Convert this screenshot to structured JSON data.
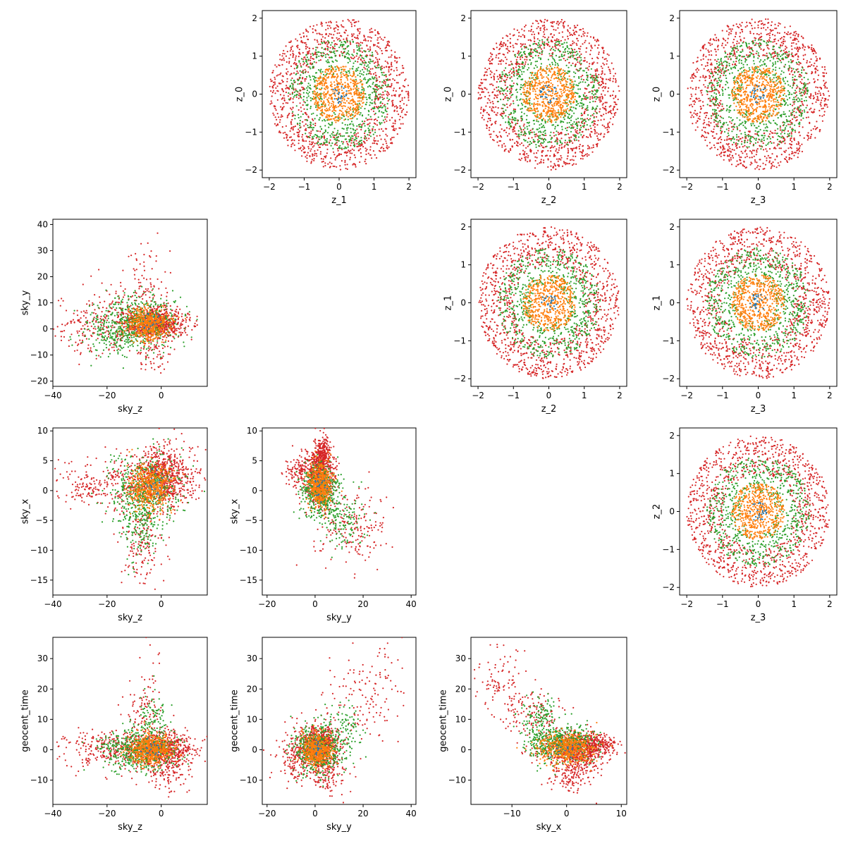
{
  "figure": {
    "colors": {
      "blue": "#1f77b4",
      "orange": "#ff7f0e",
      "green": "#2ca02c",
      "red": "#d62728",
      "frame": "#000000",
      "background": "#ffffff"
    }
  },
  "chart_data": [
    {
      "type": "scatter",
      "id": "z1-z0",
      "xlabel": "z_1",
      "ylabel": "z_0",
      "xlim": [
        -2.2,
        2.2
      ],
      "ylim": [
        -2.2,
        2.2
      ],
      "xticks": [
        -2,
        -1,
        0,
        1,
        2
      ],
      "yticks": [
        -2,
        -1,
        0,
        1,
        2
      ],
      "grid": false,
      "series": [
        {
          "color": "#d62728",
          "shape": "ring",
          "rmin": 1.0,
          "rmax": 2.0,
          "count": 1150
        },
        {
          "color": "#2ca02c",
          "shape": "ring",
          "rmin": 0.5,
          "rmax": 1.45,
          "count": 700
        },
        {
          "color": "#ff7f0e",
          "shape": "disc",
          "rmax": 0.75,
          "count": 550
        },
        {
          "color": "#1f77b4",
          "shape": "disc",
          "rmax": 0.25,
          "count": 25
        }
      ]
    },
    {
      "type": "scatter",
      "id": "z2-z0",
      "xlabel": "z_2",
      "ylabel": "z_0",
      "xlim": [
        -2.2,
        2.2
      ],
      "ylim": [
        -2.2,
        2.2
      ],
      "xticks": [
        -2,
        -1,
        0,
        1,
        2
      ],
      "yticks": [
        -2,
        -1,
        0,
        1,
        2
      ],
      "grid": false,
      "series": [
        {
          "color": "#d62728",
          "shape": "ring",
          "rmin": 1.0,
          "rmax": 2.0,
          "count": 1150
        },
        {
          "color": "#2ca02c",
          "shape": "ring",
          "rmin": 0.5,
          "rmax": 1.45,
          "count": 700
        },
        {
          "color": "#ff7f0e",
          "shape": "disc",
          "rmax": 0.75,
          "count": 550
        },
        {
          "color": "#1f77b4",
          "shape": "disc",
          "rmax": 0.25,
          "count": 25
        }
      ]
    },
    {
      "type": "scatter",
      "id": "z3-z0",
      "xlabel": "z_3",
      "ylabel": "z_0",
      "xlim": [
        -2.2,
        2.2
      ],
      "ylim": [
        -2.2,
        2.2
      ],
      "xticks": [
        -2,
        -1,
        0,
        1,
        2
      ],
      "yticks": [
        -2,
        -1,
        0,
        1,
        2
      ],
      "grid": false,
      "series": [
        {
          "color": "#d62728",
          "shape": "ring",
          "rmin": 1.0,
          "rmax": 2.0,
          "count": 1150
        },
        {
          "color": "#2ca02c",
          "shape": "ring",
          "rmin": 0.5,
          "rmax": 1.45,
          "count": 700
        },
        {
          "color": "#ff7f0e",
          "shape": "disc",
          "rmax": 0.75,
          "count": 550
        },
        {
          "color": "#1f77b4",
          "shape": "disc",
          "rmax": 0.25,
          "count": 25
        }
      ]
    },
    {
      "type": "scatter",
      "id": "skyz-skyy",
      "xlabel": "sky_z",
      "ylabel": "sky_y",
      "xlim": [
        -40,
        17
      ],
      "ylim": [
        -22,
        42
      ],
      "xticks": [
        -40,
        -20,
        0
      ],
      "yticks": [
        -20,
        -10,
        0,
        10,
        20,
        30,
        40
      ],
      "grid": false,
      "series": [
        {
          "color": "#d62728",
          "shape": "blobs",
          "count": 1200,
          "blobs": [
            {
              "cx": -2,
              "cy": 2,
              "sx": 6,
              "sy": 3,
              "w": 0.62
            },
            {
              "cx": -20,
              "cy": 2,
              "sx": 9,
              "sy": 6,
              "w": 0.22
            },
            {
              "cx": -6,
              "cy": 14,
              "sx": 4,
              "sy": 9,
              "w": 0.1
            },
            {
              "cx": -3,
              "cy": -8,
              "sx": 3,
              "sy": 5,
              "w": 0.06
            }
          ]
        },
        {
          "color": "#2ca02c",
          "shape": "blobs",
          "count": 600,
          "blobs": [
            {
              "cx": -8,
              "cy": 3,
              "sx": 8,
              "sy": 5,
              "w": 0.8
            },
            {
              "cx": -18,
              "cy": -3,
              "sx": 6,
              "sy": 4,
              "w": 0.2
            }
          ]
        },
        {
          "color": "#ff7f0e",
          "shape": "blobs",
          "count": 500,
          "blobs": [
            {
              "cx": -5,
              "cy": 2,
              "sx": 4,
              "sy": 3,
              "w": 1.0
            }
          ]
        },
        {
          "color": "#1f77b4",
          "shape": "blobs",
          "count": 20,
          "blobs": [
            {
              "cx": -4,
              "cy": 2,
              "sx": 2,
              "sy": 1.5,
              "w": 1.0
            }
          ]
        }
      ]
    },
    {
      "type": "scatter",
      "id": "z2-z1",
      "xlabel": "z_2",
      "ylabel": "z_1",
      "xlim": [
        -2.2,
        2.2
      ],
      "ylim": [
        -2.2,
        2.2
      ],
      "xticks": [
        -2,
        -1,
        0,
        1,
        2
      ],
      "yticks": [
        -2,
        -1,
        0,
        1,
        2
      ],
      "grid": false,
      "series": [
        {
          "color": "#d62728",
          "shape": "ring",
          "rmin": 1.0,
          "rmax": 2.0,
          "count": 1150
        },
        {
          "color": "#2ca02c",
          "shape": "ring",
          "rmin": 0.5,
          "rmax": 1.45,
          "count": 700
        },
        {
          "color": "#ff7f0e",
          "shape": "disc",
          "rmax": 0.75,
          "count": 550
        },
        {
          "color": "#1f77b4",
          "shape": "disc",
          "rmax": 0.25,
          "count": 25
        }
      ]
    },
    {
      "type": "scatter",
      "id": "z3-z1",
      "xlabel": "z_3",
      "ylabel": "z_1",
      "xlim": [
        -2.2,
        2.2
      ],
      "ylim": [
        -2.2,
        2.2
      ],
      "xticks": [
        -2,
        -1,
        0,
        1,
        2
      ],
      "yticks": [
        -2,
        -1,
        0,
        1,
        2
      ],
      "grid": false,
      "series": [
        {
          "color": "#d62728",
          "shape": "ring",
          "rmin": 1.0,
          "rmax": 2.0,
          "count": 1150
        },
        {
          "color": "#2ca02c",
          "shape": "ring",
          "rmin": 0.5,
          "rmax": 1.45,
          "count": 700
        },
        {
          "color": "#ff7f0e",
          "shape": "disc",
          "rmax": 0.75,
          "count": 550
        },
        {
          "color": "#1f77b4",
          "shape": "disc",
          "rmax": 0.25,
          "count": 25
        }
      ]
    },
    {
      "type": "scatter",
      "id": "skyz-skyx",
      "xlabel": "sky_z",
      "ylabel": "sky_x",
      "xlim": [
        -40,
        17
      ],
      "ylim": [
        -17.5,
        10.5
      ],
      "xticks": [
        -40,
        -20,
        0
      ],
      "yticks": [
        -15,
        -10,
        -5,
        0,
        5,
        10
      ],
      "grid": false,
      "series": [
        {
          "color": "#d62728",
          "shape": "blobs",
          "count": 1200,
          "blobs": [
            {
              "cx": 0,
              "cy": 2.5,
              "sx": 6,
              "sy": 2.5,
              "w": 0.65
            },
            {
              "cx": -22,
              "cy": 1,
              "sx": 9,
              "sy": 2,
              "w": 0.2
            },
            {
              "cx": -6,
              "cy": -8,
              "sx": 4,
              "sy": 4,
              "w": 0.15
            }
          ]
        },
        {
          "color": "#2ca02c",
          "shape": "blobs",
          "count": 600,
          "blobs": [
            {
              "cx": -6,
              "cy": 0,
              "sx": 7,
              "sy": 3,
              "w": 0.75
            },
            {
              "cx": -8,
              "cy": -6,
              "sx": 3,
              "sy": 3,
              "w": 0.25
            }
          ]
        },
        {
          "color": "#ff7f0e",
          "shape": "blobs",
          "count": 500,
          "blobs": [
            {
              "cx": -4,
              "cy": 0.5,
              "sx": 4,
              "sy": 2,
              "w": 1.0
            }
          ]
        },
        {
          "color": "#1f77b4",
          "shape": "blobs",
          "count": 20,
          "blobs": [
            {
              "cx": -3,
              "cy": 1,
              "sx": 2,
              "sy": 1,
              "w": 1.0
            }
          ]
        }
      ]
    },
    {
      "type": "scatter",
      "id": "skyy-skyx",
      "xlabel": "sky_y",
      "ylabel": "sky_x",
      "xlim": [
        -22,
        42
      ],
      "ylim": [
        -17.5,
        10.5
      ],
      "xticks": [
        -20,
        0,
        20,
        40
      ],
      "yticks": [
        -15,
        -10,
        -5,
        0,
        5,
        10
      ],
      "grid": false,
      "series": [
        {
          "color": "#d62728",
          "shape": "blobs",
          "count": 1200,
          "blobs": [
            {
              "cx": 2,
              "cy": 2.5,
              "sx": 3,
              "sy": 2.5,
              "w": 0.6
            },
            {
              "cx": 3,
              "cy": 6,
              "sx": 1.5,
              "sy": 1.5,
              "w": 0.15
            },
            {
              "cx": 15,
              "cy": -6,
              "sx": 8,
              "sy": 3.5,
              "w": 0.15
            },
            {
              "cx": -6,
              "cy": 3,
              "sx": 3,
              "sy": 1.5,
              "w": 0.1
            }
          ]
        },
        {
          "color": "#2ca02c",
          "shape": "blobs",
          "count": 600,
          "blobs": [
            {
              "cx": 2,
              "cy": 0,
              "sx": 4,
              "sy": 2.5,
              "w": 0.8
            },
            {
              "cx": 12,
              "cy": -5,
              "sx": 5,
              "sy": 2.5,
              "w": 0.2
            }
          ]
        },
        {
          "color": "#ff7f0e",
          "shape": "blobs",
          "count": 500,
          "blobs": [
            {
              "cx": 2,
              "cy": 1,
              "sx": 2.5,
              "sy": 1.8,
              "w": 1.0
            }
          ]
        },
        {
          "color": "#1f77b4",
          "shape": "blobs",
          "count": 20,
          "blobs": [
            {
              "cx": 2,
              "cy": 1,
              "sx": 1.5,
              "sy": 1,
              "w": 1.0
            }
          ]
        }
      ]
    },
    {
      "type": "scatter",
      "id": "z3-z2",
      "xlabel": "z_3",
      "ylabel": "z_2",
      "xlim": [
        -2.2,
        2.2
      ],
      "ylim": [
        -2.2,
        2.2
      ],
      "xticks": [
        -2,
        -1,
        0,
        1,
        2
      ],
      "yticks": [
        -2,
        -1,
        0,
        1,
        2
      ],
      "grid": false,
      "series": [
        {
          "color": "#d62728",
          "shape": "ring",
          "rmin": 1.0,
          "rmax": 2.0,
          "count": 1150
        },
        {
          "color": "#2ca02c",
          "shape": "ring",
          "rmin": 0.5,
          "rmax": 1.45,
          "count": 700
        },
        {
          "color": "#ff7f0e",
          "shape": "disc",
          "rmax": 0.75,
          "count": 550
        },
        {
          "color": "#1f77b4",
          "shape": "disc",
          "rmax": 0.25,
          "count": 25
        }
      ]
    },
    {
      "type": "scatter",
      "id": "skyz-geocent",
      "xlabel": "sky_z",
      "ylabel": "geocent_time",
      "xlim": [
        -40,
        17
      ],
      "ylim": [
        -18,
        37
      ],
      "xticks": [
        -40,
        -20,
        0
      ],
      "yticks": [
        -10,
        0,
        10,
        20,
        30
      ],
      "grid": false,
      "series": [
        {
          "color": "#d62728",
          "shape": "blobs",
          "count": 1200,
          "blobs": [
            {
              "cx": 0,
              "cy": 0,
              "sx": 6,
              "sy": 3,
              "w": 0.6
            },
            {
              "cx": -20,
              "cy": 0,
              "sx": 9,
              "sy": 3,
              "w": 0.22
            },
            {
              "cx": -5,
              "cy": 12,
              "sx": 4,
              "sy": 8,
              "w": 0.1
            },
            {
              "cx": 2,
              "cy": -8,
              "sx": 4,
              "sy": 3,
              "w": 0.08
            }
          ]
        },
        {
          "color": "#2ca02c",
          "shape": "blobs",
          "count": 600,
          "blobs": [
            {
              "cx": -8,
              "cy": 0,
              "sx": 7,
              "sy": 3.5,
              "w": 0.85
            },
            {
              "cx": -4,
              "cy": 10,
              "sx": 3,
              "sy": 5,
              "w": 0.15
            }
          ]
        },
        {
          "color": "#ff7f0e",
          "shape": "blobs",
          "count": 500,
          "blobs": [
            {
              "cx": -4,
              "cy": 0,
              "sx": 4,
              "sy": 2.5,
              "w": 1.0
            }
          ]
        },
        {
          "color": "#1f77b4",
          "shape": "blobs",
          "count": 20,
          "blobs": [
            {
              "cx": -3,
              "cy": 0,
              "sx": 2,
              "sy": 1.5,
              "w": 1.0
            }
          ]
        }
      ]
    },
    {
      "type": "scatter",
      "id": "skyy-geocent",
      "xlabel": "sky_y",
      "ylabel": "geocent_time",
      "xlim": [
        -22,
        42
      ],
      "ylim": [
        -18,
        37
      ],
      "xticks": [
        -20,
        0,
        20,
        40
      ],
      "yticks": [
        -10,
        0,
        10,
        20,
        30
      ],
      "grid": false,
      "series": [
        {
          "color": "#d62728",
          "shape": "blobs",
          "count": 1200,
          "blobs": [
            {
              "cx": 2,
              "cy": 1,
              "sx": 4,
              "sy": 3.5,
              "w": 0.65
            },
            {
              "cx": 22,
              "cy": 18,
              "sx": 8,
              "sy": 8,
              "w": 0.12
            },
            {
              "cx": -8,
              "cy": -2,
              "sx": 4,
              "sy": 4,
              "w": 0.15
            },
            {
              "cx": 5,
              "cy": -9,
              "sx": 4,
              "sy": 3,
              "w": 0.08
            }
          ]
        },
        {
          "color": "#2ca02c",
          "shape": "blobs",
          "count": 600,
          "blobs": [
            {
              "cx": 1,
              "cy": 0,
              "sx": 5,
              "sy": 4,
              "w": 0.8
            },
            {
              "cx": 12,
              "cy": 6,
              "sx": 5,
              "sy": 5,
              "w": 0.2
            }
          ]
        },
        {
          "color": "#ff7f0e",
          "shape": "blobs",
          "count": 500,
          "blobs": [
            {
              "cx": 1,
              "cy": 0,
              "sx": 3,
              "sy": 2.5,
              "w": 1.0
            }
          ]
        },
        {
          "color": "#1f77b4",
          "shape": "blobs",
          "count": 20,
          "blobs": [
            {
              "cx": 1,
              "cy": 0,
              "sx": 1.5,
              "sy": 1.5,
              "w": 1.0
            }
          ]
        }
      ]
    },
    {
      "type": "scatter",
      "id": "skyx-geocent",
      "xlabel": "sky_x",
      "ylabel": "geocent_time",
      "xlim": [
        -17.5,
        11
      ],
      "ylim": [
        -18,
        37
      ],
      "xticks": [
        -10,
        0,
        10
      ],
      "yticks": [
        -10,
        0,
        10,
        20,
        30
      ],
      "grid": false,
      "series": [
        {
          "color": "#d62728",
          "shape": "blobs",
          "count": 1200,
          "blobs": [
            {
              "cx": 2,
              "cy": 0,
              "sx": 3,
              "sy": 3,
              "w": 0.55
            },
            {
              "cx": 5,
              "cy": 2,
              "sx": 2,
              "sy": 1.5,
              "w": 0.15
            },
            {
              "cx": -6,
              "cy": 10,
              "sx": 3,
              "sy": 5,
              "w": 0.12
            },
            {
              "cx": -12,
              "cy": 24,
              "sx": 2.5,
              "sy": 5,
              "w": 0.08
            },
            {
              "cx": 1,
              "cy": -8,
              "sx": 2,
              "sy": 3,
              "w": 0.1
            }
          ]
        },
        {
          "color": "#2ca02c",
          "shape": "blobs",
          "count": 600,
          "blobs": [
            {
              "cx": -1,
              "cy": 2,
              "sx": 3,
              "sy": 3,
              "w": 0.75
            },
            {
              "cx": -5,
              "cy": 9,
              "sx": 2,
              "sy": 4,
              "w": 0.25
            }
          ]
        },
        {
          "color": "#ff7f0e",
          "shape": "blobs",
          "count": 500,
          "blobs": [
            {
              "cx": 0,
              "cy": 0.5,
              "sx": 2.5,
              "sy": 2.5,
              "w": 1.0
            }
          ]
        },
        {
          "color": "#1f77b4",
          "shape": "blobs",
          "count": 20,
          "blobs": [
            {
              "cx": 0,
              "cy": 0,
              "sx": 1.5,
              "sy": 1.5,
              "w": 1.0
            }
          ]
        }
      ]
    }
  ]
}
